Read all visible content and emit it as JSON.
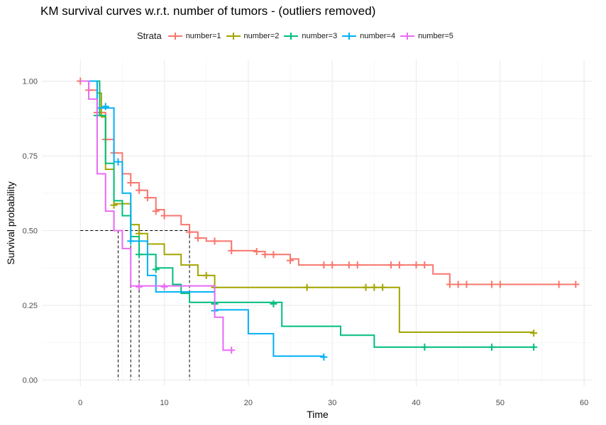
{
  "chart_data": {
    "type": "line",
    "title": "KM survival curves w.r.t. number of tumors - (outliers removed)",
    "xlabel": "Time",
    "ylabel": "Survival probability",
    "xlim": [
      -4.5,
      61
    ],
    "ylim": [
      -0.02,
      1.07
    ],
    "x_ticks": [
      0,
      10,
      20,
      30,
      40,
      50,
      60
    ],
    "y_ticks": [
      0,
      0.25,
      0.5,
      0.75,
      1.0
    ],
    "y_tick_labels": [
      "0.00",
      "0.25",
      "0.50",
      "0.75",
      "1.00"
    ],
    "grid": true,
    "legend": {
      "title": "Strata",
      "placement": "top",
      "entries": [
        "number=1",
        "number=2",
        "number=3",
        "number=4",
        "number=5"
      ]
    },
    "series": [
      {
        "name": "number=1",
        "color": "#F8766D",
        "steps": [
          [
            0,
            1.0
          ],
          [
            1,
            0.97
          ],
          [
            2,
            0.895
          ],
          [
            3,
            0.805
          ],
          [
            4,
            0.76
          ],
          [
            5,
            0.69
          ],
          [
            6,
            0.66
          ],
          [
            7,
            0.635
          ],
          [
            8,
            0.61
          ],
          [
            9,
            0.57
          ],
          [
            10,
            0.55
          ],
          [
            12,
            0.52
          ],
          [
            13,
            0.495
          ],
          [
            14,
            0.475
          ],
          [
            15,
            0.465
          ],
          [
            18,
            0.433
          ],
          [
            21,
            0.43
          ],
          [
            22,
            0.42
          ],
          [
            25,
            0.405
          ],
          [
            26,
            0.385
          ],
          [
            42,
            0.355
          ],
          [
            44,
            0.32
          ]
        ],
        "end": 59,
        "censor": [
          [
            0,
            1.0
          ],
          [
            1,
            0.97
          ],
          [
            2,
            0.895
          ],
          [
            3,
            0.805
          ],
          [
            4,
            0.76
          ],
          [
            6,
            0.66
          ],
          [
            7,
            0.635
          ],
          [
            8,
            0.61
          ],
          [
            9,
            0.565
          ],
          [
            10,
            0.55
          ],
          [
            13,
            0.495
          ],
          [
            14,
            0.475
          ],
          [
            16,
            0.465
          ],
          [
            18,
            0.433
          ],
          [
            21,
            0.43
          ],
          [
            22,
            0.42
          ],
          [
            23,
            0.42
          ],
          [
            25,
            0.4
          ],
          [
            29,
            0.385
          ],
          [
            30,
            0.385
          ],
          [
            32,
            0.385
          ],
          [
            33,
            0.385
          ],
          [
            37,
            0.385
          ],
          [
            38,
            0.385
          ],
          [
            40,
            0.385
          ],
          [
            41,
            0.385
          ],
          [
            44,
            0.32
          ],
          [
            45,
            0.32
          ],
          [
            46,
            0.32
          ],
          [
            49,
            0.32
          ],
          [
            50,
            0.32
          ],
          [
            57,
            0.32
          ],
          [
            59,
            0.32
          ]
        ]
      },
      {
        "name": "number=2",
        "color": "#A3A500",
        "steps": [
          [
            0,
            1.0
          ],
          [
            2,
            0.96
          ],
          [
            2.5,
            0.88
          ],
          [
            3,
            0.705
          ],
          [
            4,
            0.59
          ],
          [
            6,
            0.52
          ],
          [
            7,
            0.49
          ],
          [
            8,
            0.455
          ],
          [
            10,
            0.42
          ],
          [
            12,
            0.385
          ],
          [
            14,
            0.35
          ],
          [
            16,
            0.31
          ],
          [
            38,
            0.16
          ]
        ],
        "end": 54,
        "censor": [
          [
            4,
            0.585
          ],
          [
            7,
            0.49
          ],
          [
            15,
            0.35
          ],
          [
            16,
            0.31
          ],
          [
            27,
            0.31
          ],
          [
            34,
            0.31
          ],
          [
            35,
            0.31
          ],
          [
            36,
            0.31
          ],
          [
            54,
            0.157
          ]
        ]
      },
      {
        "name": "number=3",
        "color": "#00BF7D",
        "steps": [
          [
            0,
            1.0
          ],
          [
            2.3,
            0.885
          ],
          [
            3,
            0.725
          ],
          [
            4,
            0.6
          ],
          [
            5,
            0.55
          ],
          [
            6,
            0.48
          ],
          [
            7,
            0.42
          ],
          [
            9,
            0.375
          ],
          [
            11,
            0.32
          ],
          [
            12,
            0.29
          ],
          [
            13,
            0.26
          ],
          [
            24,
            0.18
          ],
          [
            31,
            0.15
          ],
          [
            35,
            0.11
          ]
        ],
        "end": 54,
        "censor": [
          [
            2,
            0.885
          ],
          [
            7,
            0.42
          ],
          [
            9,
            0.37
          ],
          [
            16,
            0.255
          ],
          [
            23,
            0.255
          ],
          [
            41,
            0.11
          ],
          [
            49,
            0.11
          ],
          [
            54,
            0.11
          ]
        ]
      },
      {
        "name": "number=4",
        "color": "#00B0F6",
        "steps": [
          [
            0,
            1.0
          ],
          [
            2,
            0.91
          ],
          [
            4,
            0.73
          ],
          [
            5,
            0.625
          ],
          [
            6,
            0.465
          ],
          [
            8,
            0.35
          ],
          [
            9,
            0.295
          ],
          [
            16,
            0.235
          ],
          [
            20,
            0.155
          ],
          [
            23,
            0.08
          ]
        ],
        "end": 29,
        "censor": [
          [
            3,
            0.915
          ],
          [
            4.5,
            0.73
          ],
          [
            6,
            0.465
          ],
          [
            16,
            0.232
          ],
          [
            29,
            0.077
          ]
        ]
      },
      {
        "name": "number=5",
        "color": "#E76BF3",
        "steps": [
          [
            0,
            1.0
          ],
          [
            1,
            0.94
          ],
          [
            2,
            0.69
          ],
          [
            3,
            0.565
          ],
          [
            4,
            0.5
          ],
          [
            5,
            0.44
          ],
          [
            6,
            0.315
          ],
          [
            16,
            0.21
          ],
          [
            17,
            0.1
          ]
        ],
        "end": 18,
        "censor": [
          [
            7,
            0.312
          ],
          [
            10,
            0.312
          ],
          [
            18,
            0.1
          ]
        ]
      }
    ],
    "median_lines": {
      "y": 0.5,
      "x": [
        4.5,
        6,
        7,
        13
      ]
    }
  }
}
